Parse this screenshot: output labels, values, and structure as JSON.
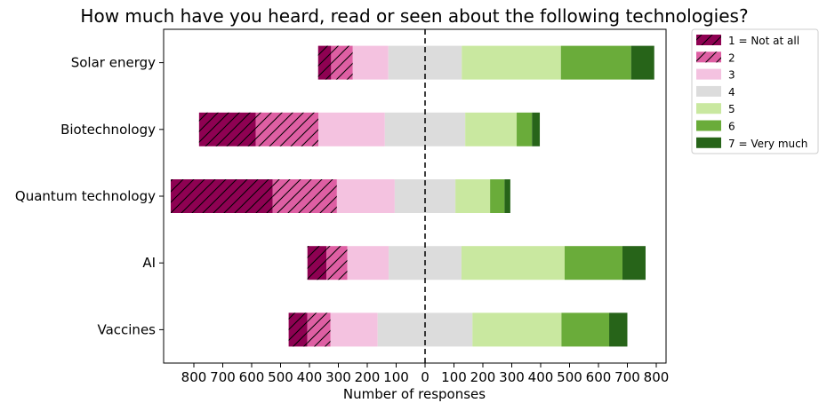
{
  "chart_data": {
    "type": "bar",
    "orientation": "horizontal-diverging",
    "title": "How much have you heard, read or seen about the following technologies?",
    "xlabel": "Number of responses",
    "ylabel": "",
    "categories": [
      "Solar energy",
      "Biotechnology",
      "Quantum technology",
      "AI",
      "Vaccines"
    ],
    "x_tick_labels": [
      "800",
      "700",
      "600",
      "500",
      "400",
      "300",
      "200",
      "100",
      "0",
      "100",
      "200",
      "300",
      "400",
      "500",
      "600",
      "700",
      "800"
    ],
    "x_ticks": [
      -800,
      -700,
      -600,
      -500,
      -400,
      -300,
      -200,
      -100,
      0,
      100,
      200,
      300,
      400,
      500,
      600,
      700,
      800
    ],
    "xlim": [
      -885,
      830
    ],
    "center_line": "dashed at 0",
    "legend_position": "outside right, top",
    "series": [
      {
        "name": "1 = Not at all",
        "color": "#8e0152",
        "hatch": true,
        "values": [
          45,
          196,
          353,
          66,
          65
        ]
      },
      {
        "name": "2",
        "color": "#de5fa3",
        "hatch": true,
        "values": [
          75,
          217,
          222,
          72,
          80
        ]
      },
      {
        "name": "3",
        "color": "#f4c2e0",
        "hatch": false,
        "values": [
          123,
          230,
          200,
          143,
          163
        ]
      },
      {
        "name": "4",
        "color": "#dcdcdc",
        "hatch": false,
        "values": [
          254,
          278,
          210,
          252,
          328
        ]
      },
      {
        "name": "5",
        "color": "#c9e8a0",
        "hatch": false,
        "values": [
          343,
          178,
          120,
          357,
          308
        ]
      },
      {
        "name": "6",
        "color": "#6aac3a",
        "hatch": false,
        "values": [
          243,
          53,
          50,
          200,
          165
        ]
      },
      {
        "name": "7 = Very much",
        "color": "#276419",
        "hatch": false,
        "values": [
          80,
          27,
          20,
          80,
          63
        ]
      }
    ]
  }
}
